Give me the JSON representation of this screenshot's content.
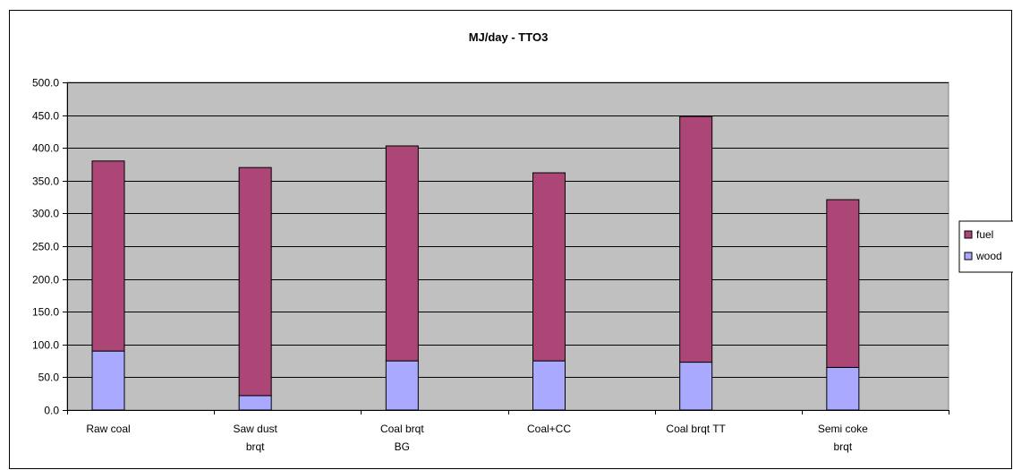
{
  "chart_data": {
    "type": "bar",
    "stacked": true,
    "title": "MJ/day - TTO3",
    "xlabel": "",
    "ylabel": "",
    "categories": [
      [
        "Raw coal"
      ],
      [
        "Saw dust",
        "brqt"
      ],
      [
        "Coal brqt",
        "BG"
      ],
      [
        "Coal+CC"
      ],
      [
        "Coal brqt TT"
      ],
      [
        "Semi coke",
        "brqt"
      ]
    ],
    "series": [
      {
        "name": "wood",
        "color": "#a9a9ff",
        "values": [
          90,
          22,
          75,
          75,
          73,
          65
        ]
      },
      {
        "name": "fuel",
        "color": "#ab4676",
        "values": [
          290,
          348,
          328,
          287,
          375,
          256
        ]
      }
    ],
    "ylim": [
      0,
      500
    ],
    "yticks": [
      "0.0",
      "50.0",
      "100.0",
      "150.0",
      "200.0",
      "250.0",
      "300.0",
      "350.0",
      "400.0",
      "450.0",
      "500.0"
    ],
    "legend_order": [
      "fuel",
      "wood"
    ],
    "legend_position": "right",
    "grid": true,
    "plot_background": "#c0c0c0"
  }
}
